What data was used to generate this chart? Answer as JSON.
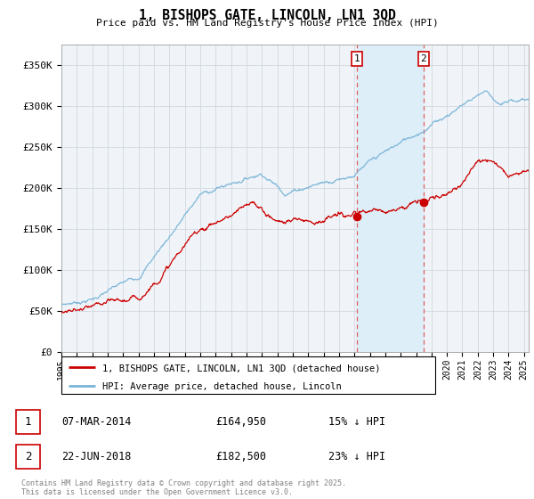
{
  "title": "1, BISHOPS GATE, LINCOLN, LN1 3QD",
  "subtitle": "Price paid vs. HM Land Registry's House Price Index (HPI)",
  "ylabel_ticks": [
    "£0",
    "£50K",
    "£100K",
    "£150K",
    "£200K",
    "£250K",
    "£300K",
    "£350K"
  ],
  "ytick_values": [
    0,
    50000,
    100000,
    150000,
    200000,
    250000,
    300000,
    350000
  ],
  "ylim": [
    0,
    375000
  ],
  "xlim_start": 1995.0,
  "xlim_end": 2025.3,
  "hpi_color": "#7ab4d8",
  "price_color": "#cc0000",
  "marker1_date": 2014.18,
  "marker1_price": 164950,
  "marker1_label": "07-MAR-2014",
  "marker1_hpi_pct": "15% ↓ HPI",
  "marker2_date": 2018.48,
  "marker2_price": 182500,
  "marker2_label": "22-JUN-2018",
  "marker2_hpi_pct": "23% ↓ HPI",
  "vline_color": "#e06060",
  "shaded_color": "#ddeef8",
  "legend_label_price": "1, BISHOPS GATE, LINCOLN, LN1 3QD (detached house)",
  "legend_label_hpi": "HPI: Average price, detached house, Lincoln",
  "footnote": "Contains HM Land Registry data © Crown copyright and database right 2025.\nThis data is licensed under the Open Government Licence v3.0.",
  "xticks": [
    1995,
    1996,
    1997,
    1998,
    1999,
    2000,
    2001,
    2002,
    2003,
    2004,
    2005,
    2006,
    2007,
    2008,
    2009,
    2010,
    2011,
    2012,
    2013,
    2014,
    2015,
    2016,
    2017,
    2018,
    2019,
    2020,
    2021,
    2022,
    2023,
    2024,
    2025
  ],
  "grid_color": "#d0d8e0",
  "bg_color": "#f0f4f8"
}
